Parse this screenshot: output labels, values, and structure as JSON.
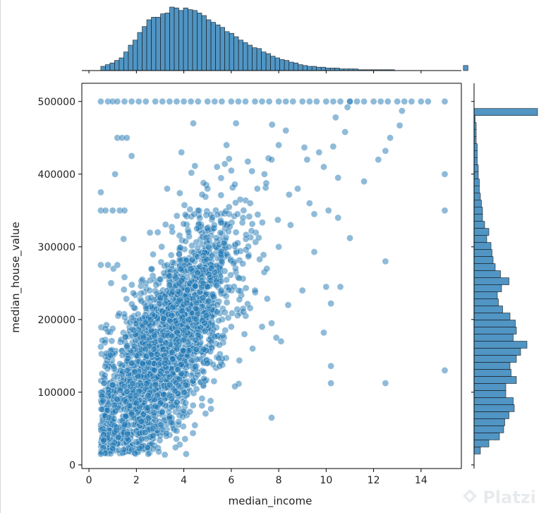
{
  "chart_data": {
    "type": "scatter",
    "title": "",
    "xlabel": "median_income",
    "ylabel": "median_house_value",
    "xlim": [
      -0.3,
      15.7
    ],
    "ylim": [
      -5000,
      525000
    ],
    "xticks": [
      0,
      2,
      4,
      6,
      8,
      10,
      12,
      14
    ],
    "yticks": [
      0,
      100000,
      200000,
      300000,
      400000,
      500000
    ],
    "xtick_labels": [
      "0",
      "2",
      "4",
      "6",
      "8",
      "10",
      "12",
      "14"
    ],
    "ytick_labels": [
      "0",
      "100000",
      "200000",
      "300000",
      "400000",
      "500000"
    ],
    "grid": false,
    "legend": "none",
    "marginals": "histograms (top: median_income, right: median_house_value)",
    "color": "#1f77b4",
    "series": [
      {
        "points": [
          [
            0.5,
            500001
          ],
          [
            0.8,
            500001
          ],
          [
            1.0,
            500001
          ],
          [
            1.2,
            500001
          ],
          [
            1.5,
            500001
          ],
          [
            1.8,
            500001
          ],
          [
            2.1,
            500001
          ],
          [
            2.4,
            500001
          ],
          [
            2.8,
            500001
          ],
          [
            3.1,
            500001
          ],
          [
            3.4,
            500001
          ],
          [
            3.7,
            500001
          ],
          [
            4.0,
            500001
          ],
          [
            4.3,
            500001
          ],
          [
            4.6,
            500001
          ],
          [
            5.0,
            500001
          ],
          [
            5.3,
            500001
          ],
          [
            5.6,
            500001
          ],
          [
            6.0,
            500001
          ],
          [
            6.3,
            500001
          ],
          [
            6.6,
            500001
          ],
          [
            7.0,
            500001
          ],
          [
            7.3,
            500001
          ],
          [
            7.6,
            500001
          ],
          [
            8.0,
            500001
          ],
          [
            8.3,
            500001
          ],
          [
            8.6,
            500001
          ],
          [
            9.0,
            500001
          ],
          [
            9.3,
            500001
          ],
          [
            9.6,
            500001
          ],
          [
            10.0,
            500001
          ],
          [
            10.3,
            500001
          ],
          [
            10.6,
            500001
          ],
          [
            11.0,
            500001
          ],
          [
            11.3,
            500001
          ],
          [
            11.6,
            500001
          ],
          [
            12.0,
            500001
          ],
          [
            12.3,
            500001
          ],
          [
            12.6,
            500001
          ],
          [
            13.0,
            500001
          ],
          [
            13.3,
            500001
          ],
          [
            13.6,
            500001
          ],
          [
            14.0,
            500001
          ],
          [
            14.3,
            500001
          ],
          [
            15.0,
            500001
          ],
          [
            0.5,
            350000
          ],
          [
            0.7,
            350000
          ],
          [
            1.0,
            350000
          ],
          [
            1.3,
            350000
          ],
          [
            1.5,
            350000
          ],
          [
            0.5,
            275000
          ],
          [
            0.8,
            275000
          ],
          [
            1.2,
            275000
          ],
          [
            0.5,
            162500
          ],
          [
            0.7,
            187500
          ],
          [
            1.0,
            187500
          ],
          [
            1.2,
            450000
          ],
          [
            1.4,
            450000
          ],
          [
            1.6,
            450000
          ],
          [
            0.5,
            375000
          ],
          [
            1.1,
            400000
          ],
          [
            1.8,
            425000
          ],
          [
            15.0,
            400000
          ],
          [
            15.0,
            350000
          ],
          [
            15.0,
            130000
          ],
          [
            12.5,
            112500
          ],
          [
            10.2,
            112500
          ],
          [
            10.2,
            136000
          ],
          [
            12.5,
            280000
          ],
          [
            11.0,
            312000
          ],
          [
            9.5,
            293000
          ],
          [
            10.0,
            245000
          ],
          [
            10.2,
            222000
          ],
          [
            10.6,
            245000
          ],
          [
            9.9,
            182000
          ],
          [
            8.1,
            170000
          ],
          [
            7.9,
            175000
          ],
          [
            7.7,
            195000
          ],
          [
            8.4,
            220000
          ],
          [
            9.0,
            240000
          ],
          [
            11.6,
            390000
          ],
          [
            12.2,
            420000
          ],
          [
            12.5,
            432000
          ],
          [
            12.7,
            450000
          ],
          [
            13.1,
            467000
          ],
          [
            13.2,
            487000
          ],
          [
            11.0,
            500000
          ],
          [
            10.9,
            492000
          ],
          [
            10.4,
            478000
          ],
          [
            10.8,
            458000
          ],
          [
            10.3,
            438000
          ],
          [
            9.7,
            430000
          ],
          [
            9.9,
            410000
          ],
          [
            10.5,
            395000
          ],
          [
            9.3,
            360000
          ],
          [
            9.5,
            345000
          ],
          [
            10.5,
            340000
          ],
          [
            10.1,
            350000
          ],
          [
            7.7,
            65000
          ],
          [
            4.1,
            15000
          ],
          [
            2.5,
            15000
          ],
          [
            1.0,
            22500
          ],
          [
            0.5,
            15000
          ],
          [
            3.2,
            14000
          ],
          [
            1.5,
            55000
          ],
          [
            1.8,
            70000
          ],
          [
            2.0,
            85000
          ],
          [
            2.2,
            60000
          ],
          [
            2.5,
            95000
          ],
          [
            2.8,
            110000
          ],
          [
            3.0,
            125000
          ],
          [
            3.2,
            140000
          ],
          [
            3.5,
            155000
          ],
          [
            3.8,
            170000
          ],
          [
            4.0,
            185000
          ],
          [
            4.2,
            200000
          ],
          [
            4.5,
            215000
          ],
          [
            4.8,
            230000
          ],
          [
            5.0,
            245000
          ],
          [
            5.3,
            265000
          ],
          [
            5.6,
            280000
          ],
          [
            5.9,
            300000
          ],
          [
            6.2,
            320000
          ],
          [
            6.5,
            340000
          ],
          [
            6.8,
            360000
          ],
          [
            7.1,
            380000
          ],
          [
            7.4,
            400000
          ],
          [
            7.7,
            420000
          ],
          [
            8.0,
            440000
          ],
          [
            8.3,
            460000
          ],
          [
            2.0,
            150000
          ],
          [
            2.3,
            175000
          ],
          [
            2.6,
            200000
          ],
          [
            3.0,
            230000
          ],
          [
            3.4,
            260000
          ],
          [
            3.8,
            290000
          ],
          [
            4.2,
            320000
          ],
          [
            4.6,
            350000
          ],
          [
            5.0,
            380000
          ],
          [
            5.4,
            410000
          ],
          [
            5.8,
            440000
          ],
          [
            6.2,
            470000
          ],
          [
            3.5,
            80000
          ],
          [
            4.0,
            100000
          ],
          [
            4.5,
            120000
          ],
          [
            5.0,
            140000
          ],
          [
            5.5,
            165000
          ],
          [
            6.0,
            190000
          ],
          [
            6.5,
            215000
          ],
          [
            7.0,
            240000
          ],
          [
            7.5,
            270000
          ],
          [
            8.0,
            300000
          ],
          [
            8.5,
            330000
          ],
          [
            1.2,
            90000
          ],
          [
            1.0,
            110000
          ],
          [
            1.6,
            130000
          ],
          [
            2.4,
            250000
          ],
          [
            2.9,
            320000
          ],
          [
            3.3,
            380000
          ],
          [
            3.9,
            430000
          ],
          [
            4.4,
            470000
          ],
          [
            6.9,
            160000
          ],
          [
            7.3,
            190000
          ],
          [
            8.8,
            380000
          ],
          [
            9.2,
            420000
          ]
        ]
      }
    ],
    "histogram_x": {
      "bin_start": 0.4999,
      "bin_width": 0.1935,
      "counts": [
        5,
        7,
        9,
        12,
        15,
        22,
        30,
        36,
        45,
        52,
        60,
        63,
        63,
        67,
        68,
        75,
        74,
        71,
        74,
        72,
        71,
        68,
        65,
        60,
        57,
        54,
        51,
        46,
        44,
        40,
        36,
        33,
        30,
        27,
        26,
        22,
        20,
        17,
        15,
        13,
        12,
        10,
        9,
        7,
        6,
        5,
        5,
        4,
        4,
        3,
        3,
        3,
        2,
        2,
        2,
        2,
        1,
        1,
        1,
        1,
        1,
        1,
        1,
        1,
        0,
        0,
        0,
        0,
        0,
        0,
        0,
        0,
        0,
        0,
        0,
        0,
        0,
        0,
        0,
        6
      ]
    },
    "histogram_y": {
      "bin_start": 14999,
      "bin_width": 9700,
      "counts": [
        6,
        14,
        24,
        28,
        29,
        33,
        38,
        37,
        30,
        30,
        40,
        35,
        34,
        40,
        44,
        50,
        37,
        40,
        39,
        34,
        27,
        23,
        22,
        26,
        33,
        25,
        20,
        18,
        17,
        16,
        12,
        14,
        10,
        8,
        8,
        7,
        6,
        5,
        5,
        4,
        4,
        3,
        3,
        3,
        2,
        2,
        2,
        1,
        60
      ]
    }
  },
  "watermark": {
    "text": "Platzi",
    "icon": "platzi-logo-icon"
  }
}
